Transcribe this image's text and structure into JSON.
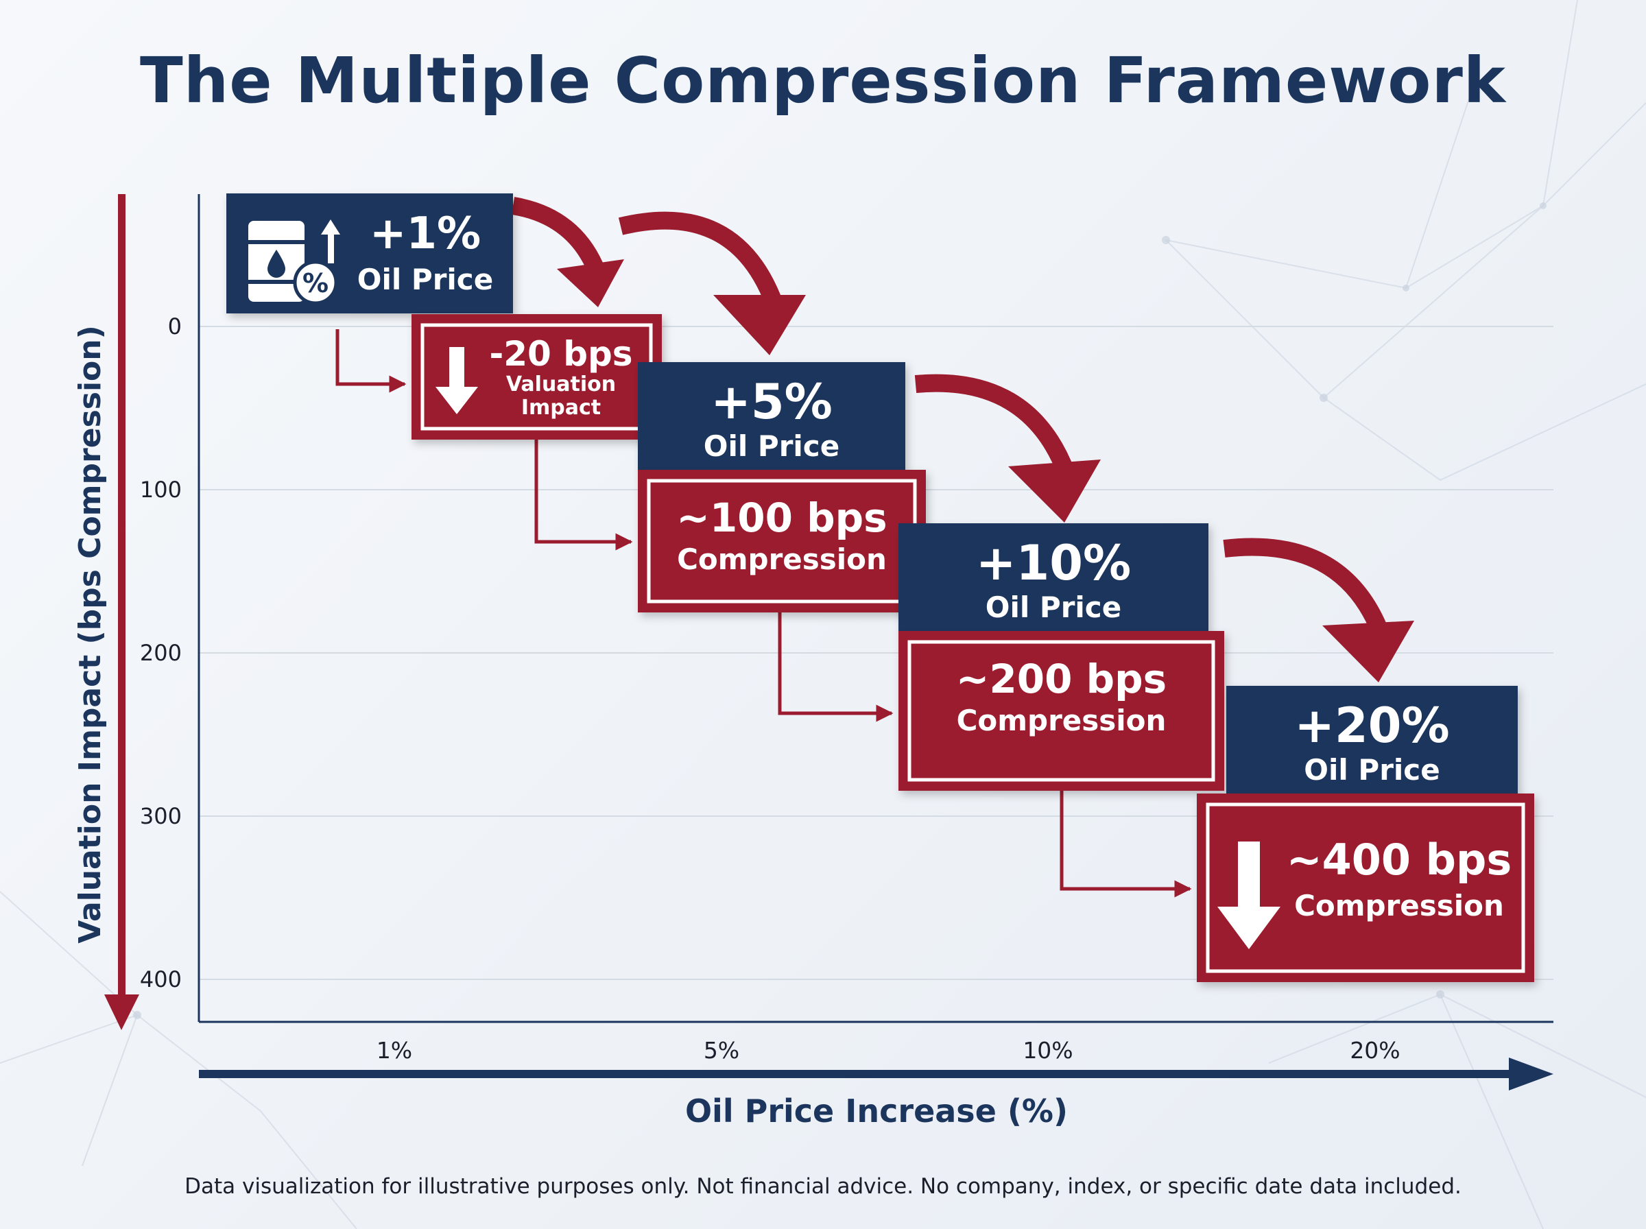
{
  "title": "The Multiple Compression Framework",
  "footer": "Data visualization for illustrative purposes only. Not financial advice. No company, index, or specific date data included.",
  "colors": {
    "navy": "#1b355c",
    "red": "#9b1c2e",
    "grid": "#d5dbe3",
    "text": "#1a1f2b"
  },
  "chart_data": {
    "type": "bar",
    "title": "The Multiple Compression Framework",
    "xlabel": "Oil Price Increase (%)",
    "ylabel": "Valuation Impact (bps Compression)",
    "categories": [
      "1%",
      "5%",
      "10%",
      "20%"
    ],
    "y_ticks": [
      "0",
      "100",
      "200",
      "300",
      "400"
    ],
    "ylim": [
      0,
      400
    ],
    "y_inverted": true,
    "grid": true,
    "values": [
      20,
      100,
      200,
      400
    ],
    "steps": [
      {
        "oil_value": "+1%",
        "oil_label": "Oil Price",
        "impact_value": "-20 bps",
        "impact_label": "Valuation Impact",
        "bps": 20,
        "icon": "oil-barrel-percent-icon"
      },
      {
        "oil_value": "+5%",
        "oil_label": "Oil Price",
        "impact_value": "~100 bps",
        "impact_label": "Compression",
        "bps": 100,
        "icon": ""
      },
      {
        "oil_value": "+10%",
        "oil_label": "Oil Price",
        "impact_value": "~200 bps",
        "impact_label": "Compression",
        "bps": 200,
        "icon": ""
      },
      {
        "oil_value": "+20%",
        "oil_label": "Oil Price",
        "impact_value": "~400 bps",
        "impact_label": "Compression",
        "bps": 400,
        "icon": "down-arrow-icon"
      }
    ]
  }
}
